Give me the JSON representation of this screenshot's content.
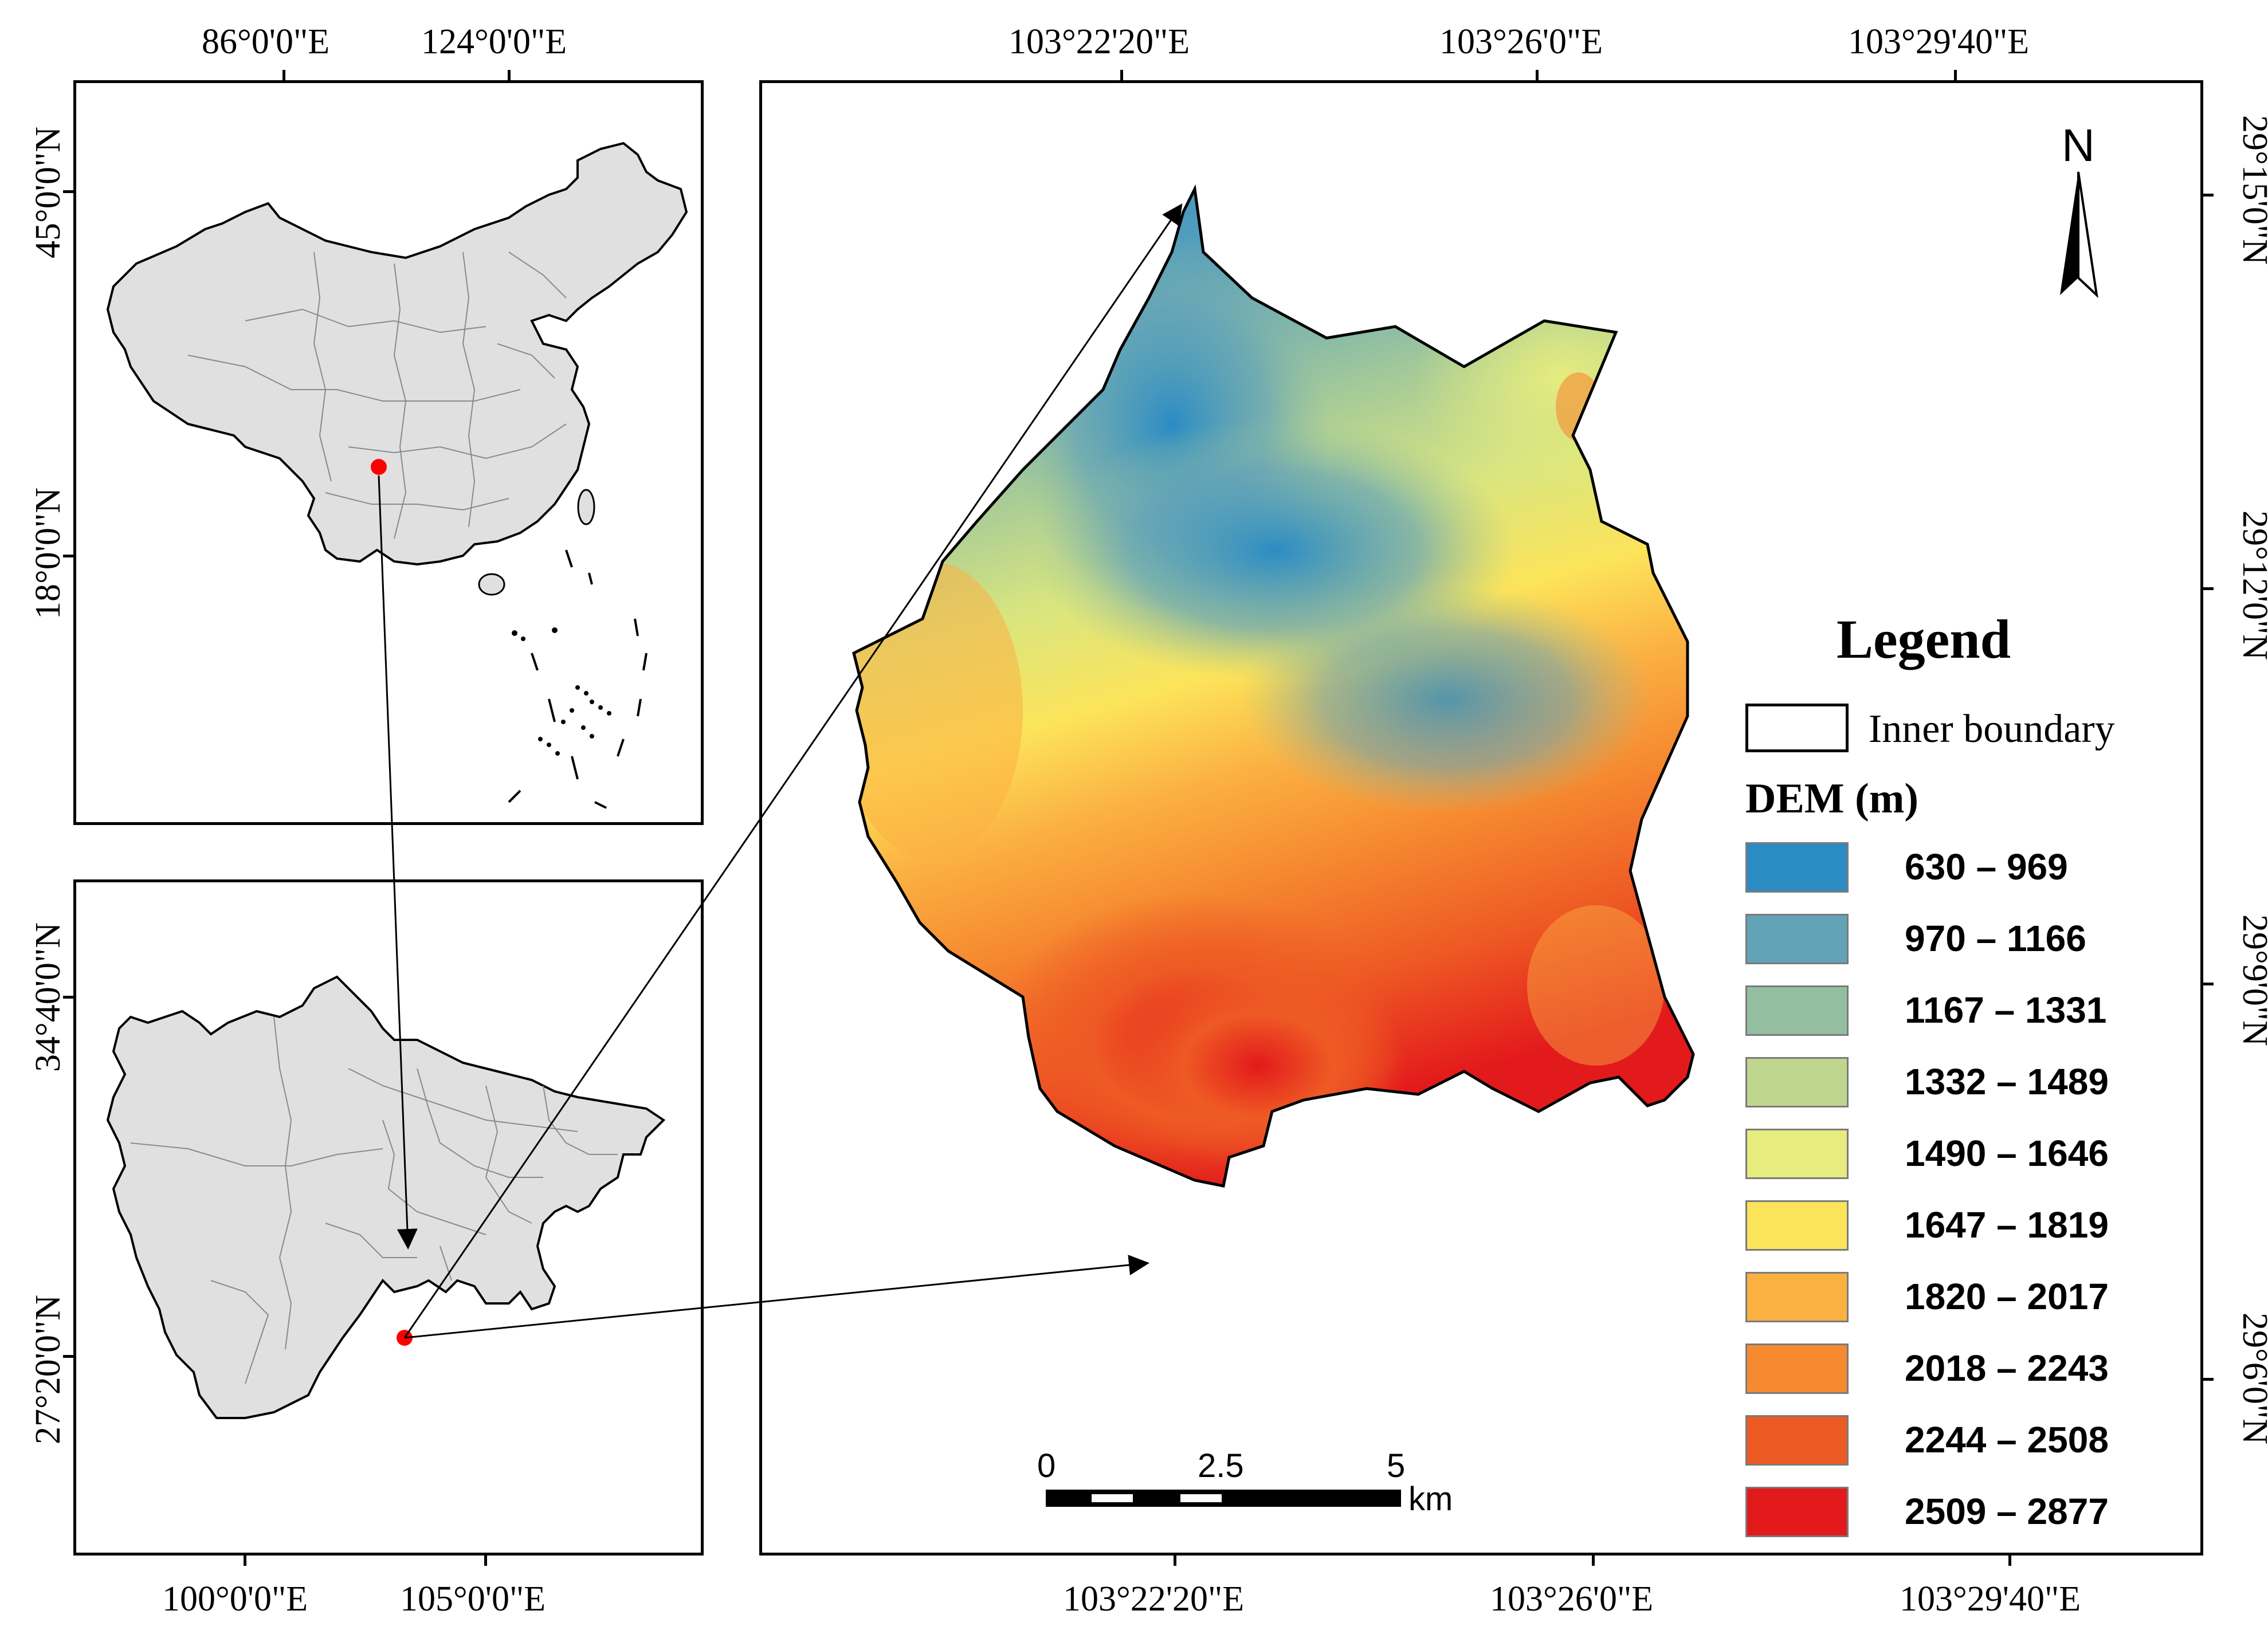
{
  "inset_china": {
    "top_labels": [
      "86°0'0\"E",
      "124°0'0\"E"
    ],
    "left_labels": [
      "45°0'0\"N",
      "18°0'0\"N"
    ]
  },
  "inset_sichuan": {
    "bottom_labels": [
      "100°0'0\"E",
      "105°0'0\"E"
    ],
    "left_labels": [
      "34°40'0\"N",
      "27°20'0\"N"
    ]
  },
  "main_map": {
    "top_labels": [
      "103°22'20\"E",
      "103°26'0\"E",
      "103°29'40\"E"
    ],
    "bottom_labels": [
      "103°22'20\"E",
      "103°26'0\"E",
      "103°29'40\"E"
    ],
    "right_labels": [
      "29°15'0\"N",
      "29°12'0\"N",
      "29°9'0\"N",
      "29°6'0\"N"
    ],
    "north_arrow": "N",
    "scale_bar": {
      "ticks": [
        "0",
        "2.5",
        "5"
      ],
      "unit": "km"
    }
  },
  "legend": {
    "title": "Legend",
    "boundary_label": "Inner boundary",
    "dem_title": "DEM (m)",
    "classes": [
      {
        "label": "630 – 969",
        "color": "#2b8cc4"
      },
      {
        "label": "970 – 1166",
        "color": "#63a3b8"
      },
      {
        "label": "1167 – 1331",
        "color": "#93bfa0"
      },
      {
        "label": "1332 – 1489",
        "color": "#bfd68f"
      },
      {
        "label": "1490 – 1646",
        "color": "#e6ec7e"
      },
      {
        "label": "1647 – 1819",
        "color": "#fce45a"
      },
      {
        "label": "1820 – 2017",
        "color": "#fbb042"
      },
      {
        "label": "2018 – 2243",
        "color": "#f68a30"
      },
      {
        "label": "2244 – 2508",
        "color": "#ee5a24"
      },
      {
        "label": "2509 – 2877",
        "color": "#e31a1c"
      }
    ]
  },
  "colors": {
    "map_fill": "#e0e0e0",
    "locator_dot": "#ff0000"
  }
}
